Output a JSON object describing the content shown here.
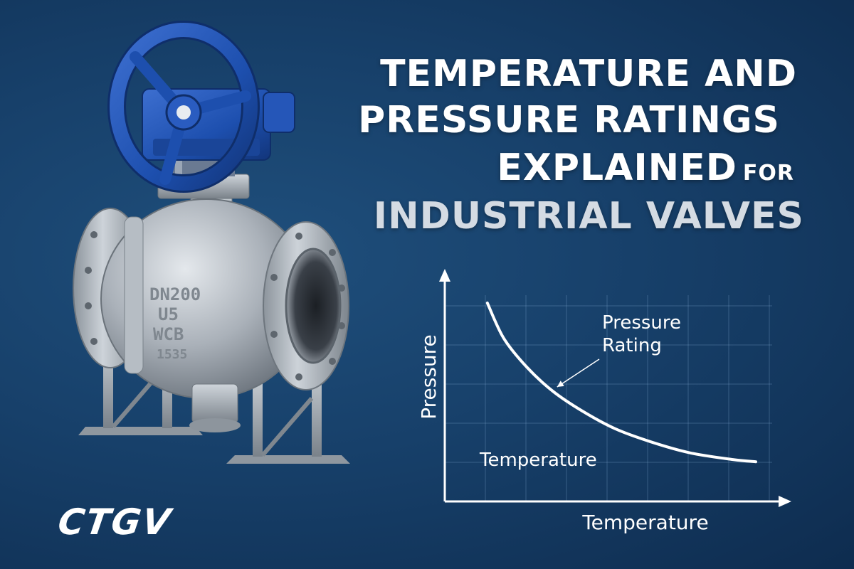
{
  "colors": {
    "background": "#17406a",
    "title_white": "#ffffff",
    "title_gray": "#d4dbe3",
    "wheel_blue": "#1d4fae",
    "valve_steel": "#a9b0b8",
    "chart_line": "#ffffff"
  },
  "title": {
    "line1": "TEMPERATURE AND",
    "line2": "PRESSURE RATINGS",
    "line3_main": "EXPLAINED",
    "line3_small": "FOR",
    "line4": "INDUSTRIAL VALVES"
  },
  "valve": {
    "casting_marks": [
      "DN200",
      "U5",
      "WCB",
      "1535"
    ]
  },
  "brand": {
    "logo_text": "CTGV"
  },
  "chart_data": {
    "type": "line",
    "ylabel": "Pressure",
    "xlabel": "Temperature",
    "inner_label": "Temperature",
    "annotation": "Pressure\nRating",
    "grid": true,
    "xlim": [
      0,
      100
    ],
    "ylim": [
      0,
      100
    ],
    "series": [
      {
        "x": [
          13,
          18,
          25,
          33,
          42,
          52,
          63,
          75,
          88,
          95
        ],
        "y": [
          90,
          74,
          61,
          50,
          41,
          33,
          27,
          22,
          19,
          18
        ]
      }
    ]
  }
}
